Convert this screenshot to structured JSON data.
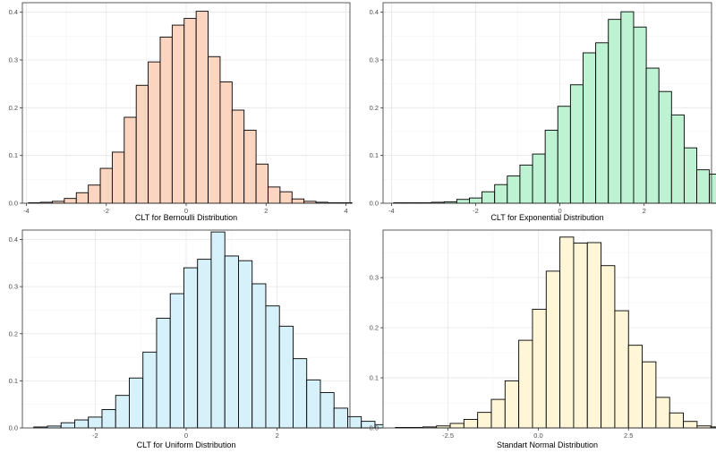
{
  "chart_data": [
    {
      "type": "bar",
      "xlabel": "CLT for Bernoulli Distribution",
      "ylabel": "",
      "xlim": [
        -4.1,
        4.1
      ],
      "ylim": [
        0,
        0.42
      ],
      "xticks": [
        -4,
        -2,
        0,
        2,
        4
      ],
      "xtick_labels": [
        "-4",
        "-2",
        "0",
        "2",
        "4"
      ],
      "yticks": [
        0,
        0.1,
        0.2,
        0.3,
        0.4
      ],
      "ytick_labels": [
        "0.0",
        "0.1",
        "0.2",
        "0.3",
        "0.4"
      ],
      "grid": true,
      "fill_color": "#fcd5c0",
      "edge_color": "#000000",
      "bin_width": 0.3,
      "bin_edges_start": -3.95,
      "values": [
        0.001,
        0.002,
        0.004,
        0.01,
        0.022,
        0.038,
        0.073,
        0.107,
        0.18,
        0.247,
        0.296,
        0.348,
        0.373,
        0.387,
        0.402,
        0.307,
        0.254,
        0.195,
        0.153,
        0.082,
        0.034,
        0.024,
        0.009,
        0.004,
        0.002,
        0.001,
        0.001
      ]
    },
    {
      "type": "bar",
      "xlabel": "CLT for Exponential Distribution",
      "ylabel": "",
      "xlim": [
        -4.2,
        3.6
      ],
      "ylim": [
        0,
        0.42
      ],
      "xticks": [
        -4,
        -2,
        0,
        2
      ],
      "xtick_labels": [
        "-4",
        "-2",
        "0",
        "2"
      ],
      "yticks": [
        0,
        0.1,
        0.2,
        0.3,
        0.4
      ],
      "ytick_labels": [
        "0.0",
        "0.1",
        "0.2",
        "0.3",
        "0.4"
      ],
      "grid": true,
      "fill_color": "#bdf2d3",
      "edge_color": "#000000",
      "bin_width": 0.3,
      "bin_edges_start": -3.95,
      "values": [
        0.001,
        0.001,
        0.001,
        0.002,
        0.003,
        0.008,
        0.011,
        0.024,
        0.039,
        0.057,
        0.08,
        0.103,
        0.153,
        0.203,
        0.248,
        0.315,
        0.336,
        0.385,
        0.401,
        0.369,
        0.283,
        0.234,
        0.185,
        0.116,
        0.07,
        0.061,
        0.035,
        0.019,
        0.009,
        0.004
      ]
    },
    {
      "type": "bar",
      "xlabel": "CLT for Uniform Distribution",
      "ylabel": "",
      "xlim": [
        -3.6,
        3.6
      ],
      "ylim": [
        0,
        0.42
      ],
      "xticks": [
        -2,
        0,
        2
      ],
      "xtick_labels": [
        "-2",
        "0",
        "2"
      ],
      "yticks": [
        0,
        0.1,
        0.2,
        0.3,
        0.4
      ],
      "ytick_labels": [
        "0.0",
        "0.1",
        "0.2",
        "0.3",
        "0.4"
      ],
      "grid": true,
      "fill_color": "#d7f1fb",
      "edge_color": "#000000",
      "bin_width": 0.3,
      "bin_edges_start": -3.35,
      "values": [
        0.002,
        0.004,
        0.011,
        0.017,
        0.023,
        0.039,
        0.069,
        0.106,
        0.161,
        0.233,
        0.285,
        0.34,
        0.358,
        0.416,
        0.365,
        0.355,
        0.306,
        0.259,
        0.216,
        0.147,
        0.102,
        0.075,
        0.042,
        0.024,
        0.014,
        0.007,
        0.004,
        0.002
      ]
    },
    {
      "type": "bar",
      "xlabel": "Standart Normal Distribution",
      "ylabel": "",
      "xlim": [
        -4.3,
        4.8
      ],
      "ylim": [
        0,
        0.395
      ],
      "xticks": [
        -2.5,
        0,
        2.5
      ],
      "xtick_labels": [
        "-2.5",
        "0.0",
        "2.5"
      ],
      "yticks": [
        0,
        0.1,
        0.2,
        0.3
      ],
      "ytick_labels": [
        "0.0",
        "0.1",
        "0.2",
        "0.3"
      ],
      "grid": true,
      "fill_color": "#fef6d6",
      "edge_color": "#000000",
      "bin_width": 0.38,
      "bin_edges_start": -3.96,
      "values": [
        0.001,
        0.001,
        0.002,
        0.004,
        0.009,
        0.017,
        0.031,
        0.057,
        0.094,
        0.175,
        0.237,
        0.313,
        0.381,
        0.369,
        0.37,
        0.324,
        0.234,
        0.165,
        0.132,
        0.061,
        0.03,
        0.013,
        0.004,
        0.002,
        0.001,
        0.001
      ]
    }
  ]
}
